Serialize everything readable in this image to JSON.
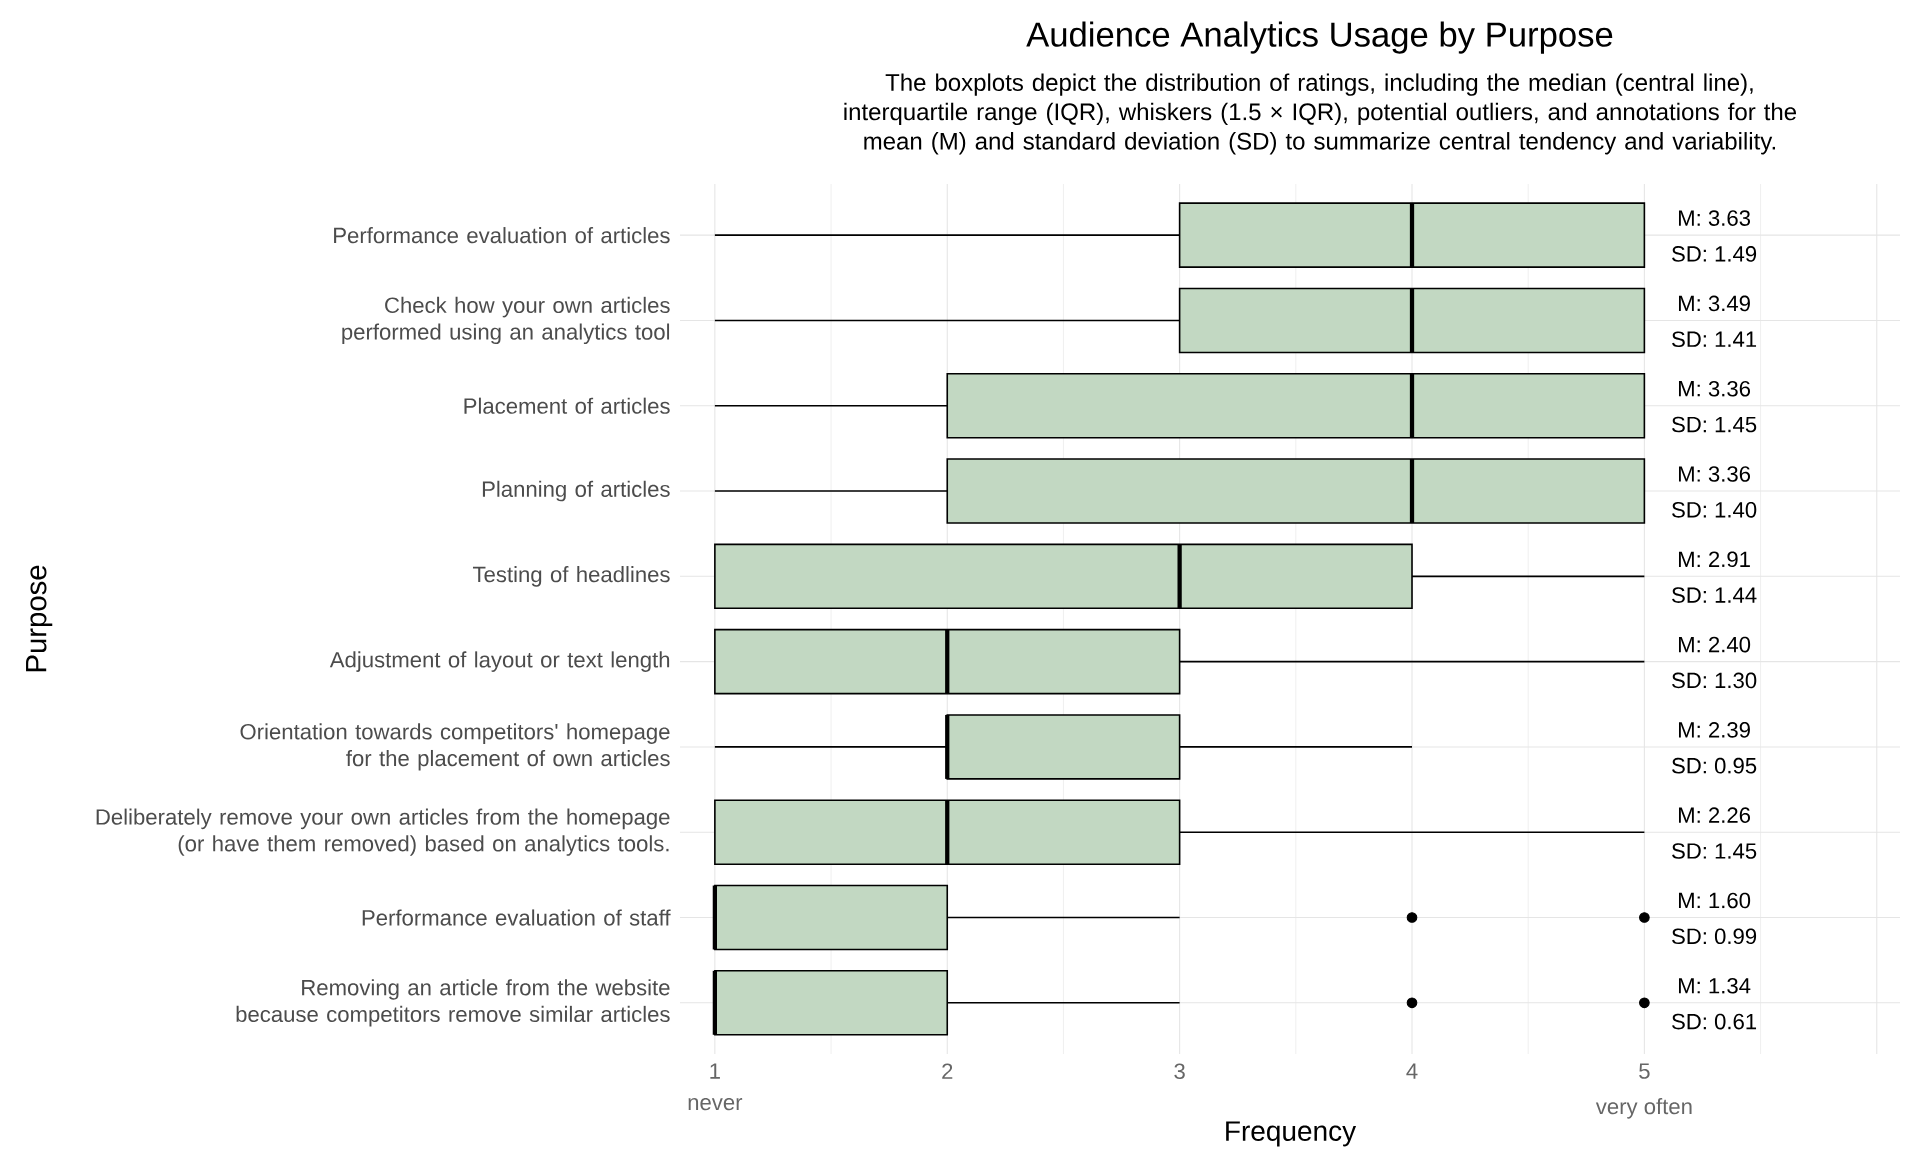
{
  "chart_data": {
    "type": "box",
    "orientation": "horizontal",
    "title": "Audience Analytics Usage by Purpose",
    "subtitle": "The boxplots depict the distribution of ratings, including the median (central line), interquartile range (IQR), whiskers (1.5 × IQR), potential outliers, and annotations for the mean (M) and standard deviation (SD) to summarize central tendency and variability.",
    "xlabel": "Frequency",
    "ylabel": "Purpose",
    "categories": [
      "Performance evaluation of articles",
      "Check how your own articles performed using an analytics tool",
      "Placement of articles",
      "Planning of articles",
      "Testing of headlines",
      "Adjustment of layout or text length",
      "Orientation towards competitors' homepage for the placement of own articles",
      "Deliberately remove your own articles from the homepage (or have them removed) based on analytics tools.",
      "Performance evaluation of staff",
      "Removing an article from the website because competitors remove similar articles"
    ],
    "series": [
      {
        "color": "#c2d8c2",
        "boxes": [
          {
            "low": 1,
            "q1": 3,
            "median": 4,
            "q3": 5,
            "high": 5
          },
          {
            "low": 1,
            "q1": 3,
            "median": 4,
            "q3": 5,
            "high": 5
          },
          {
            "low": 1,
            "q1": 2,
            "median": 4,
            "q3": 5,
            "high": 5
          },
          {
            "low": 1,
            "q1": 2,
            "median": 4,
            "q3": 5,
            "high": 5
          },
          {
            "low": 1,
            "q1": 1,
            "median": 3,
            "q3": 4,
            "high": 5
          },
          {
            "low": 1,
            "q1": 1,
            "median": 2,
            "q3": 3,
            "high": 5
          },
          {
            "low": 1,
            "q1": 2,
            "median": 2,
            "q3": 3,
            "high": 4
          },
          {
            "low": 1,
            "q1": 1,
            "median": 2,
            "q3": 3,
            "high": 5
          },
          {
            "low": 1,
            "q1": 1,
            "median": 1,
            "q3": 2,
            "high": 3,
            "outliers": [
              4,
              5
            ]
          },
          {
            "low": 1,
            "q1": 1,
            "median": 1,
            "q3": 2,
            "high": 3,
            "outliers": [
              4,
              5
            ]
          }
        ]
      }
    ],
    "xlim": [
      0.85,
      6.1
    ],
    "xticks": [
      1,
      2,
      3,
      4,
      5,
      {
        "value": 6,
        "label": null
      }
    ],
    "grid": true,
    "annotations": [
      "M: 3.63",
      "SD: 1.49",
      "M: 3.49",
      "SD: 1.41",
      "M: 3.36",
      "SD: 1.45",
      "M: 3.36",
      "SD: 1.40",
      "M: 2.91",
      "SD: 1.44",
      "M: 2.40",
      "SD: 1.30",
      "M: 2.39",
      "SD: 0.95",
      "M: 2.26",
      "SD: 1.45",
      "M: 1.60",
      "SD: 0.99",
      "M: 1.34",
      "SD: 0.61",
      "never",
      "very often"
    ]
  }
}
